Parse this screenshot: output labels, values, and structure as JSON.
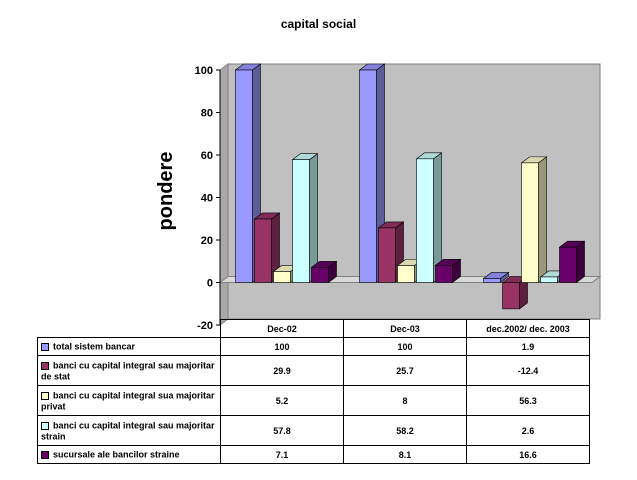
{
  "chart_data": {
    "type": "bar",
    "title": "capital social",
    "ylabel": "pondere",
    "xlabel": "",
    "categories": [
      "Dec-02",
      "Dec-03",
      "dec.2002/ dec. 2003"
    ],
    "ylim": [
      -20,
      100
    ],
    "yticks": [
      -20,
      0,
      20,
      40,
      60,
      80,
      100
    ],
    "grid": false,
    "legend": "table-below",
    "series": [
      {
        "name": "total sistem bancar",
        "values": [
          100,
          100,
          1.9
        ],
        "labels": [
          "100",
          "100",
          "1.9"
        ],
        "color": "#9999ff"
      },
      {
        "name": "banci cu capital integral sau majoritar de stat",
        "values": [
          29.9,
          25.7,
          -12.4
        ],
        "labels": [
          "29.9",
          "25.7",
          "-12.4"
        ],
        "color": "#993366"
      },
      {
        "name": "banci cu capital integral sua majoritar privat",
        "values": [
          5.2,
          8,
          56.3
        ],
        "labels": [
          "5.2",
          "8",
          "56.3"
        ],
        "color": "#ffffcc"
      },
      {
        "name": "banci cu capital integral sau majoritar strain",
        "values": [
          57.8,
          58.2,
          2.6
        ],
        "labels": [
          "57.8",
          "58.2",
          "2.6"
        ],
        "color": "#ccffff"
      },
      {
        "name": "sucursale ale bancilor straine",
        "values": [
          7.1,
          8.1,
          16.6
        ],
        "labels": [
          "7.1",
          "8.1",
          "16.6"
        ],
        "color": "#660066"
      }
    ]
  }
}
